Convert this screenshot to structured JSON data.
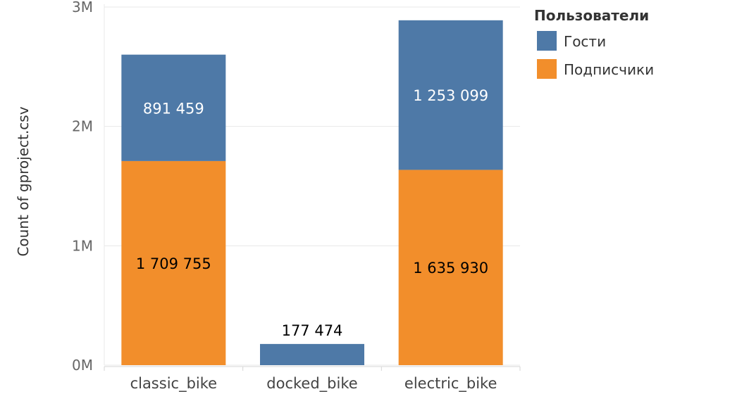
{
  "chart_data": {
    "type": "bar",
    "stacked": true,
    "ylabel": "Count of gproject.csv",
    "xlabel": "",
    "ylim": [
      0,
      3000000
    ],
    "yticks": [
      0,
      1000000,
      2000000,
      3000000
    ],
    "ytick_labels": [
      "0M",
      "1M",
      "2M",
      "3M"
    ],
    "grid": true,
    "categories": [
      "classic_bike",
      "docked_bike",
      "electric_bike"
    ],
    "series": [
      {
        "name": "Подписчики",
        "color": "#f28e2b",
        "values": [
          1709755,
          0,
          1635930
        ],
        "labels": [
          "1 709 755",
          "",
          "1 635 930"
        ]
      },
      {
        "name": "Гости",
        "color": "#4e79a7",
        "values": [
          891459,
          177474,
          1253099
        ],
        "labels": [
          "891 459",
          "177 474",
          "1 253 099"
        ]
      }
    ],
    "legend": {
      "title": "Пользователи",
      "placement": "top-right",
      "order": [
        "Гости",
        "Подписчики"
      ]
    }
  }
}
